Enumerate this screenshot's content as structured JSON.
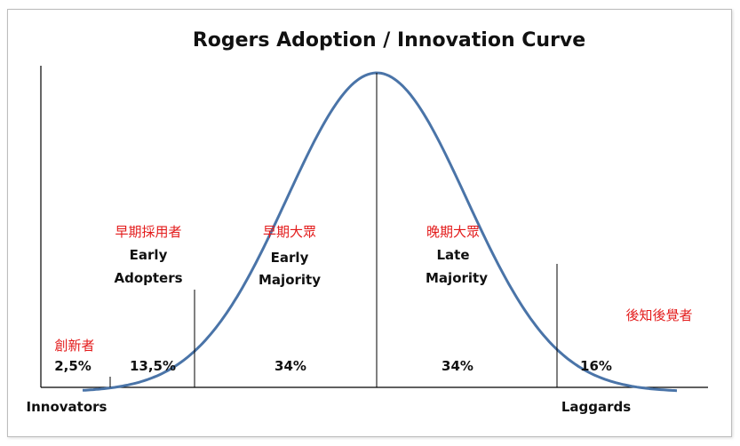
{
  "title": "Rogers Adoption / Innovation Curve",
  "colors": {
    "curve": "#4a74a8",
    "axis": "#000000",
    "cjk_label": "#e31b1b",
    "text": "#111111"
  },
  "segments": [
    {
      "cjk": "創新者",
      "en": [
        "",
        ""
      ],
      "pct": "2,5%",
      "share": 2.5
    },
    {
      "cjk": "早期採用者",
      "en": [
        "Early",
        "Adopters"
      ],
      "pct": "13,5%",
      "share": 13.5
    },
    {
      "cjk": "早期大眾",
      "en": [
        "Early",
        "Majority"
      ],
      "pct": "34%",
      "share": 34
    },
    {
      "cjk": "晚期大眾",
      "en": [
        "Late",
        "Majority"
      ],
      "pct": "34%",
      "share": 34
    },
    {
      "cjk": "後知後覺者",
      "en": [
        "",
        ""
      ],
      "pct": "16%",
      "share": 16
    }
  ],
  "axis_labels": {
    "left": "Innovators",
    "right": "Laggards"
  }
}
